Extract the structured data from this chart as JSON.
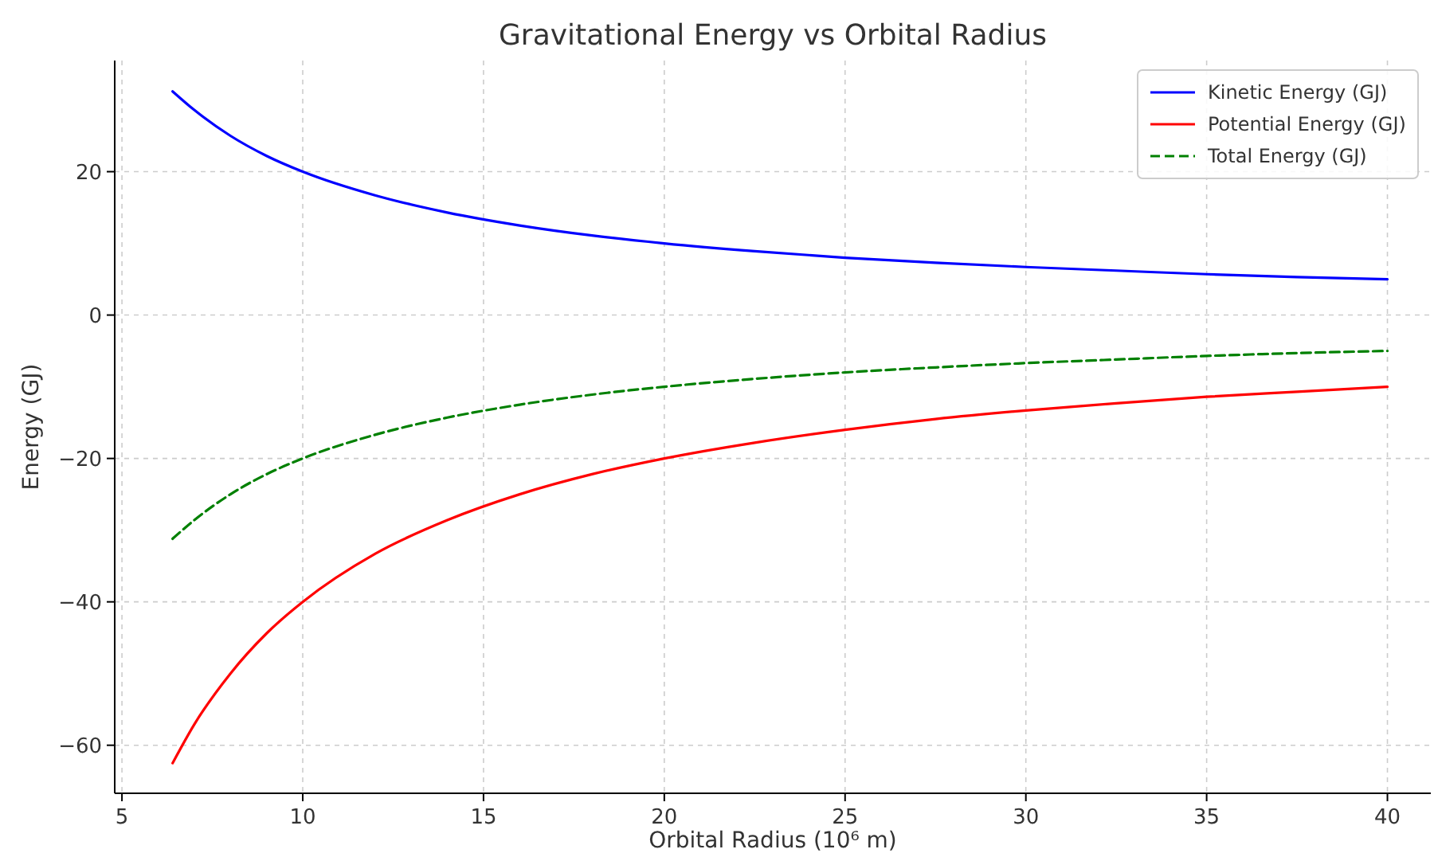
{
  "chart_data": {
    "type": "line",
    "title": "Gravitational Energy vs Orbital Radius",
    "xlabel": "Orbital Radius (10⁶ m)",
    "ylabel": "Energy (GJ)",
    "x": [
      6.4,
      7,
      8,
      9,
      10,
      12,
      14,
      16,
      18,
      20,
      22.5,
      25,
      27.5,
      30,
      32.5,
      35,
      37.5,
      40
    ],
    "series": [
      {
        "name": "Kinetic Energy (GJ)",
        "color": "#0000ff",
        "line_style": "solid",
        "values": [
          31.2,
          28.6,
          25,
          22.2,
          20,
          16.7,
          14.3,
          12.5,
          11.1,
          10,
          8.9,
          8,
          7.3,
          6.7,
          6.2,
          5.7,
          5.3,
          5
        ]
      },
      {
        "name": "Potential Energy (GJ)",
        "color": "#ff0000",
        "line_style": "solid",
        "values": [
          -62.5,
          -57.1,
          -50,
          -44.4,
          -40,
          -33.3,
          -28.6,
          -25,
          -22.2,
          -20,
          -17.8,
          -16,
          -14.5,
          -13.3,
          -12.3,
          -11.4,
          -10.7,
          -10
        ]
      },
      {
        "name": "Total Energy (GJ)",
        "color": "#008000",
        "line_style": "dashed",
        "values": [
          -31.2,
          -28.6,
          -25,
          -22.2,
          -20,
          -16.7,
          -14.3,
          -12.5,
          -11.1,
          -10,
          -8.9,
          -8,
          -7.3,
          -6.7,
          -6.2,
          -5.7,
          -5.3,
          -5
        ]
      }
    ],
    "xlim": [
      4.8,
      41.2
    ],
    "ylim": [
      -66.7,
      35.5
    ],
    "xticks": [
      5,
      10,
      15,
      20,
      25,
      30,
      35,
      40
    ],
    "yticks": [
      {
        "value": -60,
        "label": "−60"
      },
      {
        "value": -40,
        "label": "−40"
      },
      {
        "value": -20,
        "label": "−20"
      },
      0,
      20
    ],
    "grid": true,
    "legend": "top right",
    "marker": "none"
  }
}
